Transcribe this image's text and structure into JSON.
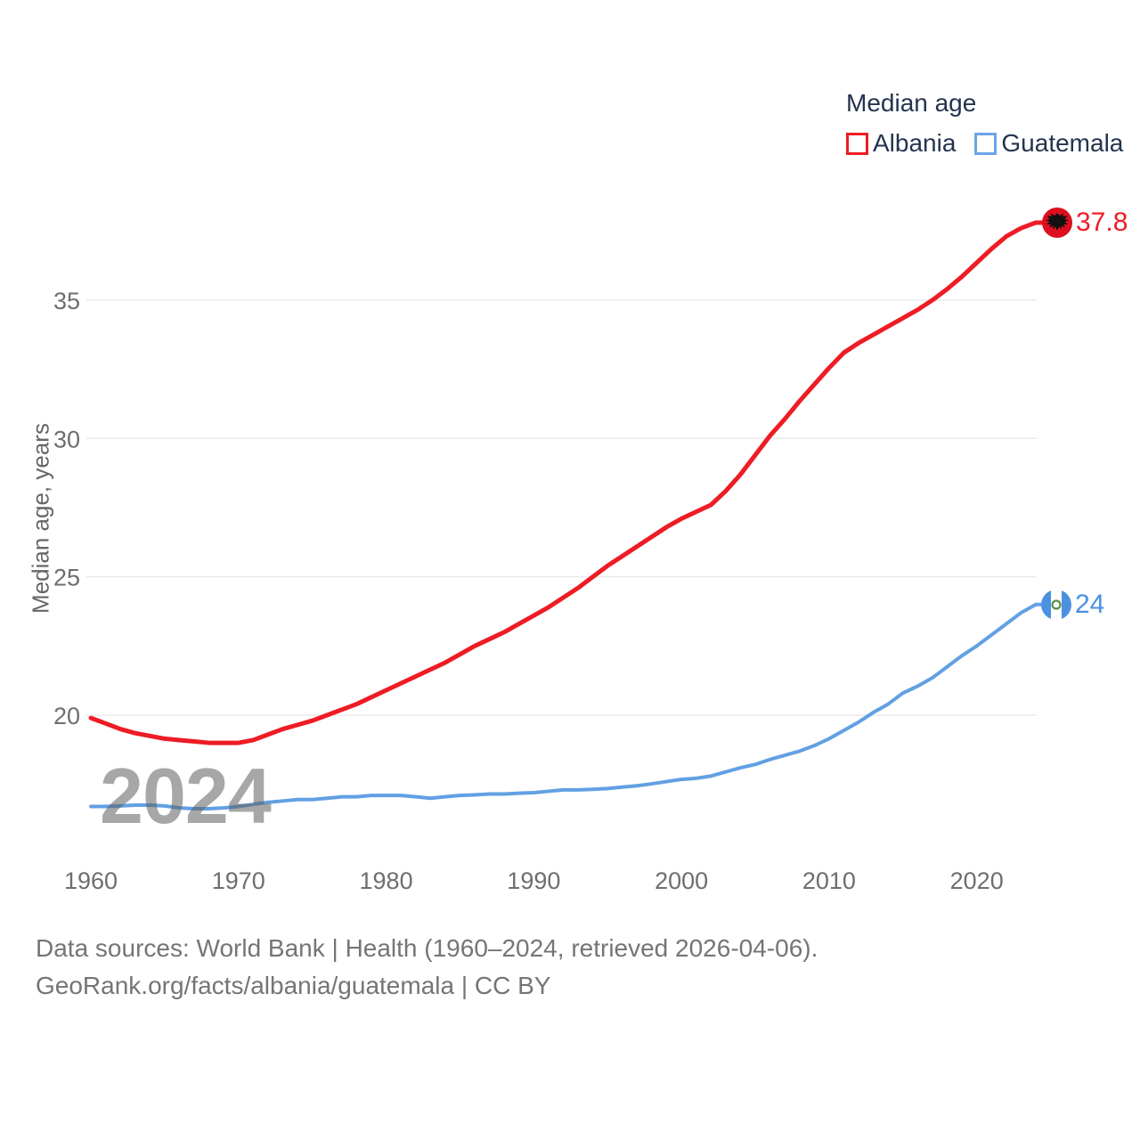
{
  "legend": {
    "title": "Median age",
    "series": [
      {
        "label": "Albania",
        "color": "#ee1c25"
      },
      {
        "label": "Guatemala",
        "color": "#5c9de4"
      }
    ]
  },
  "watermark": "2024",
  "footer": {
    "line1": "Data sources: World Bank | Health (1960–2024, retrieved 2026-04-06).",
    "line2": "GeoRank.org/facts/albania/guatemala | CC BY"
  },
  "chart_data": {
    "type": "line",
    "title": "Median age",
    "ylabel": "Median age, years",
    "xlabel": "",
    "x_range": [
      1960,
      2024
    ],
    "ylim": [
      16,
      39
    ],
    "grid": "horizontal",
    "legend_position": "top-right",
    "y_ticks": [
      20,
      25,
      30,
      35
    ],
    "x_ticks": [
      1960,
      1970,
      1980,
      1990,
      2000,
      2010,
      2020
    ],
    "x": [
      1960,
      1961,
      1962,
      1963,
      1964,
      1965,
      1966,
      1967,
      1968,
      1969,
      1970,
      1971,
      1972,
      1973,
      1974,
      1975,
      1976,
      1977,
      1978,
      1979,
      1980,
      1981,
      1982,
      1983,
      1984,
      1985,
      1986,
      1987,
      1988,
      1989,
      1990,
      1991,
      1992,
      1993,
      1994,
      1995,
      1996,
      1997,
      1998,
      1999,
      2000,
      2001,
      2002,
      2003,
      2004,
      2005,
      2006,
      2007,
      2008,
      2009,
      2010,
      2011,
      2012,
      2013,
      2014,
      2015,
      2016,
      2017,
      2018,
      2019,
      2020,
      2021,
      2022,
      2023,
      2024
    ],
    "series": [
      {
        "name": "Albania",
        "color": "#ee1c25",
        "end_label": "37.8",
        "values": [
          19.9,
          19.7,
          19.5,
          19.35,
          19.25,
          19.15,
          19.1,
          19.05,
          19.0,
          19.0,
          19.0,
          19.1,
          19.3,
          19.5,
          19.65,
          19.8,
          20.0,
          20.2,
          20.4,
          20.65,
          20.9,
          21.15,
          21.4,
          21.65,
          21.9,
          22.2,
          22.5,
          22.75,
          23.0,
          23.3,
          23.6,
          23.9,
          24.25,
          24.6,
          25.0,
          25.4,
          25.75,
          26.1,
          26.45,
          26.8,
          27.1,
          27.35,
          27.6,
          28.1,
          28.7,
          29.4,
          30.1,
          30.7,
          31.35,
          31.95,
          32.55,
          33.1,
          33.45,
          33.75,
          34.05,
          34.35,
          34.65,
          35.0,
          35.4,
          35.85,
          36.35,
          36.85,
          37.3,
          37.6,
          37.8
        ]
      },
      {
        "name": "Guatemala",
        "color": "#62a0e3",
        "end_label": "24",
        "values": [
          16.7,
          16.7,
          16.72,
          16.75,
          16.75,
          16.72,
          16.65,
          16.62,
          16.62,
          16.65,
          16.7,
          16.78,
          16.85,
          16.9,
          16.95,
          16.95,
          17.0,
          17.05,
          17.05,
          17.1,
          17.1,
          17.1,
          17.05,
          17.0,
          17.05,
          17.1,
          17.12,
          17.15,
          17.15,
          17.18,
          17.2,
          17.25,
          17.3,
          17.3,
          17.32,
          17.35,
          17.4,
          17.45,
          17.52,
          17.6,
          17.68,
          17.72,
          17.8,
          17.95,
          18.1,
          18.22,
          18.4,
          18.55,
          18.7,
          18.9,
          19.15,
          19.45,
          19.75,
          20.1,
          20.4,
          20.8,
          21.05,
          21.35,
          21.75,
          22.15,
          22.5,
          22.9,
          23.3,
          23.7,
          24.0
        ]
      }
    ]
  }
}
